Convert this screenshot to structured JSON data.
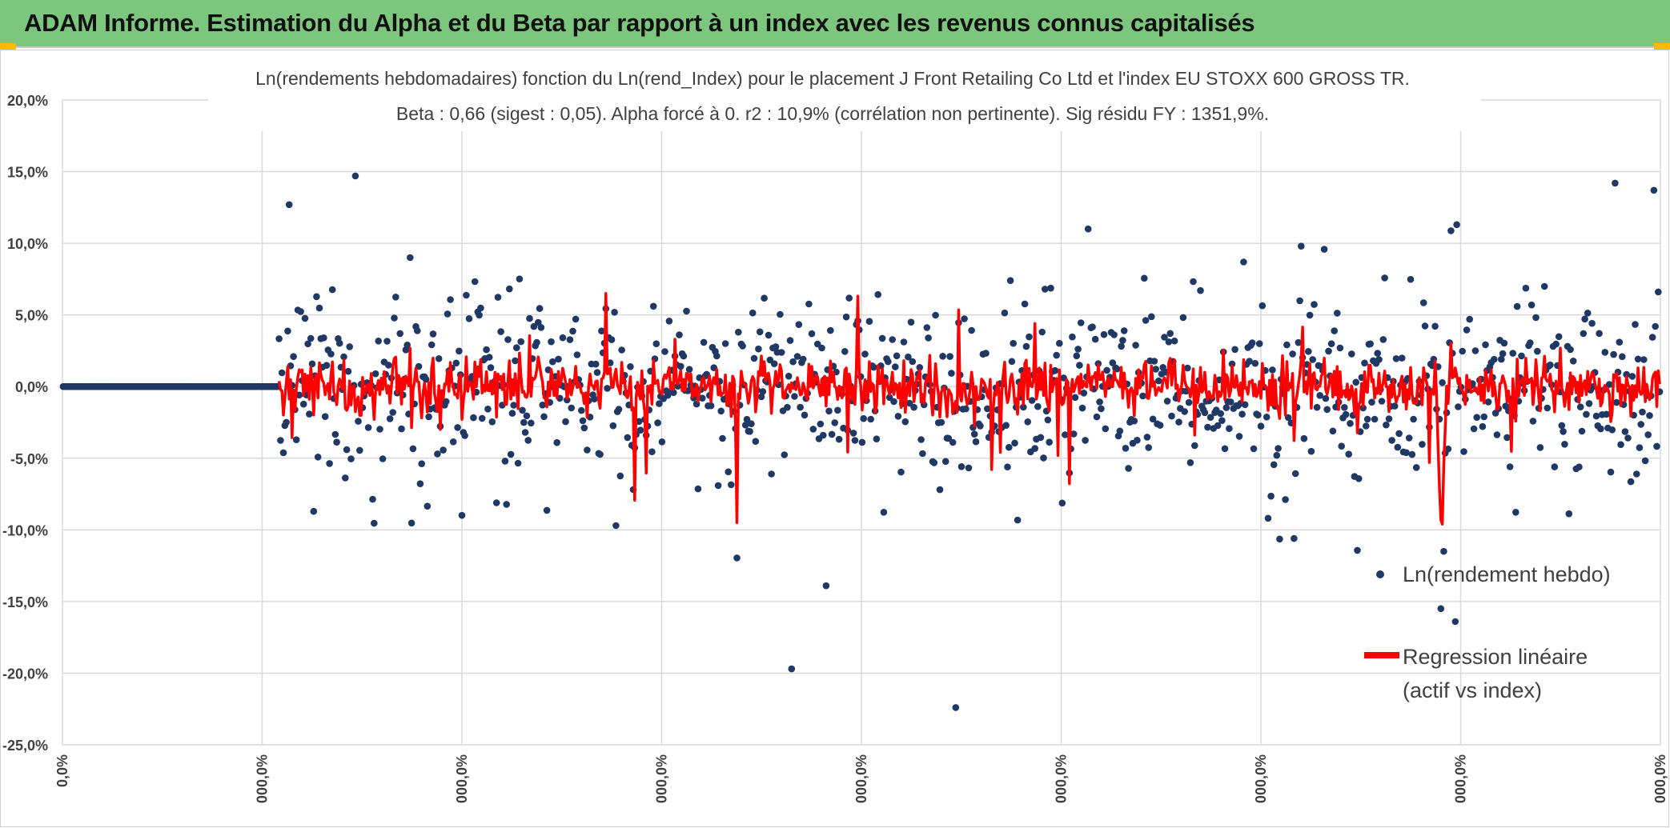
{
  "banner": {
    "title": "ADAM Informe. Estimation du Alpha et du Beta par rapport à un index avec les revenus connus capitalisés",
    "color": "#7dc67d"
  },
  "chart_data": {
    "type": "scatter",
    "title_line1": "Ln(rendements hebdomadaires) fonction du Ln(rend_Index) pour le placement J Front Retailing Co Ltd et l'index EU STOXX 600 GROSS TR.",
    "title_line2": "Beta : 0,66 (sigest : 0,05). Alpha forcé à 0. r2 : 10,9% (corrélation non pertinente). Sig résidu FY : 1351,9%.",
    "ylim": [
      -25,
      20
    ],
    "y_ticks": [
      "20,0%",
      "15,0%",
      "10,0%",
      "5,0%",
      "0,0%",
      "-5,0%",
      "-10,0%",
      "-15,0%",
      "-20,0%",
      "-25,0%"
    ],
    "y_tick_values": [
      20,
      15,
      10,
      5,
      0,
      -5,
      -10,
      -15,
      -20,
      -25
    ],
    "x_ticks": [
      "0,0%",
      "000,0%",
      "000,0%",
      "000,0%",
      "000,0%",
      "000,0%",
      "000,0%",
      "000,0%",
      "000,0%"
    ],
    "beta": 0.66,
    "alpha": 0,
    "n_points": 1110,
    "n_zero_points": 150,
    "series": [
      {
        "name": "Ln(rendement hebdo)",
        "color": "#203864",
        "marker": "dot"
      },
      {
        "name": "Regression linéaire",
        "name_line2": "(actif vs index)",
        "color": "#ff0000",
        "marker": "line"
      }
    ],
    "notable_points": [
      {
        "idx": 157,
        "y": 12.7
      },
      {
        "idx": 203,
        "y": 14.7
      },
      {
        "idx": 384,
        "y": -9.7
      },
      {
        "idx": 506,
        "y": -19.7
      },
      {
        "idx": 530,
        "y": -13.9
      },
      {
        "idx": 620,
        "y": -22.4
      },
      {
        "idx": 658,
        "y": 7.4
      },
      {
        "idx": 682,
        "y": 6.8
      },
      {
        "idx": 712,
        "y": 11.0
      },
      {
        "idx": 855,
        "y": -10.6
      },
      {
        "idx": 957,
        "y": -15.5
      },
      {
        "idx": 959,
        "y": -11.5
      },
      {
        "idx": 967,
        "y": -16.4
      },
      {
        "idx": 968,
        "y": 11.3
      },
      {
        "idx": 1078,
        "y": 14.2
      },
      {
        "idx": 1105,
        "y": 13.7
      }
    ]
  }
}
